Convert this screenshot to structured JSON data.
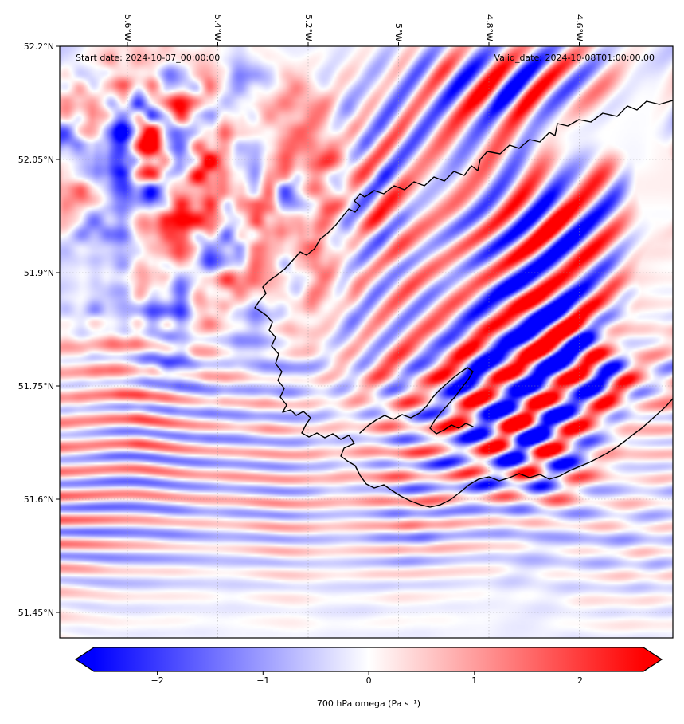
{
  "figure": {
    "background_color": "#ffffff"
  },
  "chart_data": {
    "type": "heatmap",
    "title": "",
    "variable": "700 hPa omega",
    "units": "Pa s⁻¹",
    "colorbar_label": "700 hPa omega (Pa s⁻¹)",
    "colorbar_tick_labels": [
      "−2",
      "−1",
      "0",
      "1",
      "2"
    ],
    "colorbar_ticks": [
      -2,
      -1,
      0,
      1,
      2
    ],
    "colorbar_extend": "both",
    "colormap": "bwr (blue-white-red)",
    "colormap_colors": [
      "#0000ff",
      "#ffffff",
      "#ff0000"
    ],
    "value_range_approx": [
      -2.6,
      2.6
    ],
    "x_axis": {
      "side": "top",
      "tick_labels": [
        "5.6°W",
        "5.4°W",
        "5.2°W",
        "5°W",
        "4.8°W",
        "4.6°W"
      ],
      "extent_deg_lon_west_approx": [
        5.75,
        4.39
      ]
    },
    "y_axis": {
      "side": "left",
      "tick_labels": [
        "52.2°N",
        "52.05°N",
        "51.9°N",
        "51.75°N",
        "51.6°N",
        "51.45°N"
      ],
      "extent_deg_lat_north_approx": [
        51.41,
        52.2
      ]
    },
    "annotations": {
      "start_date": "Start date: 2024-10-07_00:00:00",
      "valid_date": "Valid_date: 2024-10-08T01:00:00.00"
    },
    "overlays": [
      "coastline of southwest Wales, UK",
      "dashed lat/lon graticule"
    ],
    "field_description": "Turbulent omega field: fine-scale red/blue convective cells in the northwest quadrant, high-amplitude SW-NE tilted wave bands in the east/northeast, weak horizontal wave stripes across the southern half, fading to near-white at the bottom edge."
  }
}
